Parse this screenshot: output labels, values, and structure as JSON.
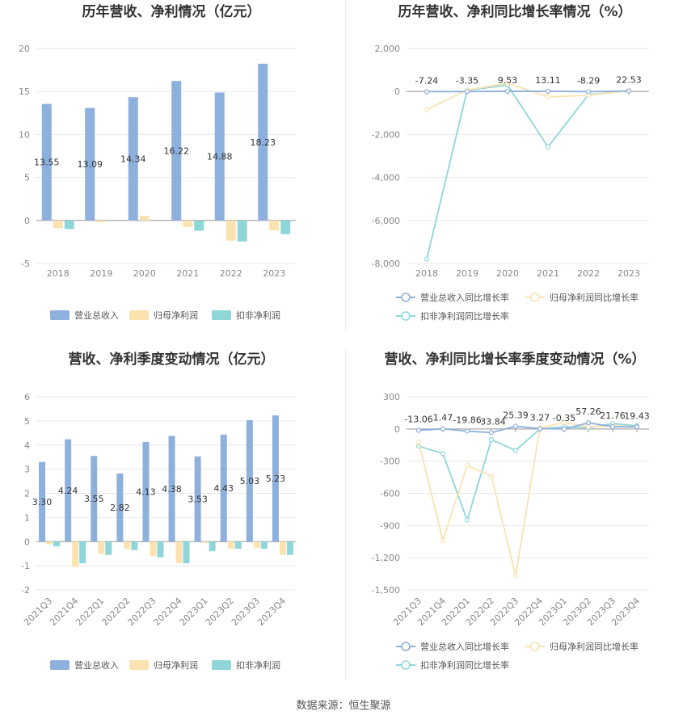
{
  "source_label": "数据来源：恒生聚源",
  "colors": {
    "revenue": "#8eb0dd",
    "net_profit": "#fbe2b1",
    "deducted_profit": "#8fd6d9",
    "grid": "#e8e8e8",
    "axis": "#999999"
  },
  "chart_data": [
    {
      "type": "bar",
      "title": "历年营收、净利情况（亿元）",
      "categories": [
        "2018",
        "2019",
        "2020",
        "2021",
        "2022",
        "2023"
      ],
      "series": [
        {
          "name": "营业总收入",
          "values": [
            13.55,
            13.09,
            14.34,
            16.22,
            14.88,
            18.23
          ],
          "show_labels": true
        },
        {
          "name": "归母净利润",
          "values": [
            -0.9,
            -0.2,
            0.55,
            -0.75,
            -2.35,
            -1.15
          ],
          "show_labels": false
        },
        {
          "name": "扣非净利润",
          "values": [
            -1.0,
            0.0,
            0.0,
            -1.2,
            -2.45,
            -1.6
          ],
          "show_labels": false
        }
      ],
      "ylim": [
        -5,
        20
      ],
      "yticks": [
        -5,
        0,
        5,
        10,
        15,
        20
      ],
      "grid": true,
      "legend": "bottom"
    },
    {
      "type": "line",
      "title": "历年营收、净利同比增长率情况（%）",
      "categories": [
        "2018",
        "2019",
        "2020",
        "2021",
        "2022",
        "2023"
      ],
      "series": [
        {
          "name": "营业总收入同比增长率",
          "values": [
            -7.24,
            -3.35,
            9.53,
            13.11,
            -8.29,
            22.53
          ],
          "show_labels": true
        },
        {
          "name": "归母净利润同比增长率",
          "values": [
            -850,
            70,
            380,
            -250,
            -180,
            40
          ],
          "show_labels": false
        },
        {
          "name": "扣非净利润同比增长率",
          "values": [
            -7800,
            50,
            300,
            -2580,
            -150,
            30
          ],
          "show_labels": false
        }
      ],
      "ylim": [
        -8000,
        2000
      ],
      "yticks": [
        -8000,
        -6000,
        -4000,
        -2000,
        0,
        2000
      ],
      "ytick_labels": [
        "-8,000",
        "-6,000",
        "-4,000",
        "-2,000",
        "0",
        "2,000"
      ],
      "grid": true,
      "legend": "bottom"
    },
    {
      "type": "bar",
      "title": "营收、净利季度变动情况（亿元）",
      "categories": [
        "2021Q3",
        "2021Q4",
        "2022Q1",
        "2022Q2",
        "2022Q3",
        "2022Q4",
        "2023Q1",
        "2023Q2",
        "2023Q3",
        "2023Q4"
      ],
      "series": [
        {
          "name": "营业总收入",
          "values": [
            3.3,
            4.24,
            3.55,
            2.82,
            4.13,
            4.38,
            3.53,
            4.43,
            5.03,
            5.23
          ],
          "show_labels": true
        },
        {
          "name": "归母净利润",
          "values": [
            -0.1,
            -1.05,
            -0.5,
            -0.3,
            -0.6,
            -0.9,
            -0.05,
            -0.3,
            -0.25,
            -0.55
          ],
          "show_labels": false
        },
        {
          "name": "扣非净利润",
          "values": [
            -0.2,
            -0.9,
            -0.55,
            -0.35,
            -0.65,
            -0.9,
            -0.4,
            -0.3,
            -0.3,
            -0.55
          ],
          "show_labels": false
        }
      ],
      "ylim": [
        -2,
        6
      ],
      "yticks": [
        -2,
        -1,
        0,
        1,
        2,
        3,
        4,
        5,
        6
      ],
      "grid": true,
      "legend": "bottom"
    },
    {
      "type": "line",
      "title": "营收、净利同比增长率季度变动情况（%）",
      "categories": [
        "2021Q3",
        "2021Q4",
        "2022Q1",
        "2022Q2",
        "2022Q3",
        "2022Q4",
        "2023Q1",
        "2023Q2",
        "2023Q3",
        "2023Q4"
      ],
      "series": [
        {
          "name": "营业总收入同比增长率",
          "values": [
            -13.06,
            1.47,
            -19.86,
            -33.84,
            25.39,
            3.27,
            -0.35,
            57.26,
            21.76,
            19.43
          ],
          "show_labels": true
        },
        {
          "name": "归母净利润同比增长率",
          "values": [
            -120,
            -1040,
            -340,
            -440,
            -1370,
            10,
            60,
            20,
            30,
            20
          ],
          "show_labels": false
        },
        {
          "name": "扣非净利润同比增长率",
          "values": [
            -160,
            -230,
            -850,
            -100,
            -200,
            0,
            20,
            10,
            50,
            30
          ],
          "show_labels": false
        }
      ],
      "ylim": [
        -1500,
        300
      ],
      "yticks": [
        -1500,
        -1200,
        -900,
        -600,
        -300,
        0,
        300
      ],
      "ytick_labels": [
        "-1,500",
        "-1,200",
        "-900",
        "-600",
        "-300",
        "0",
        "300"
      ],
      "grid": true,
      "legend": "bottom"
    }
  ]
}
